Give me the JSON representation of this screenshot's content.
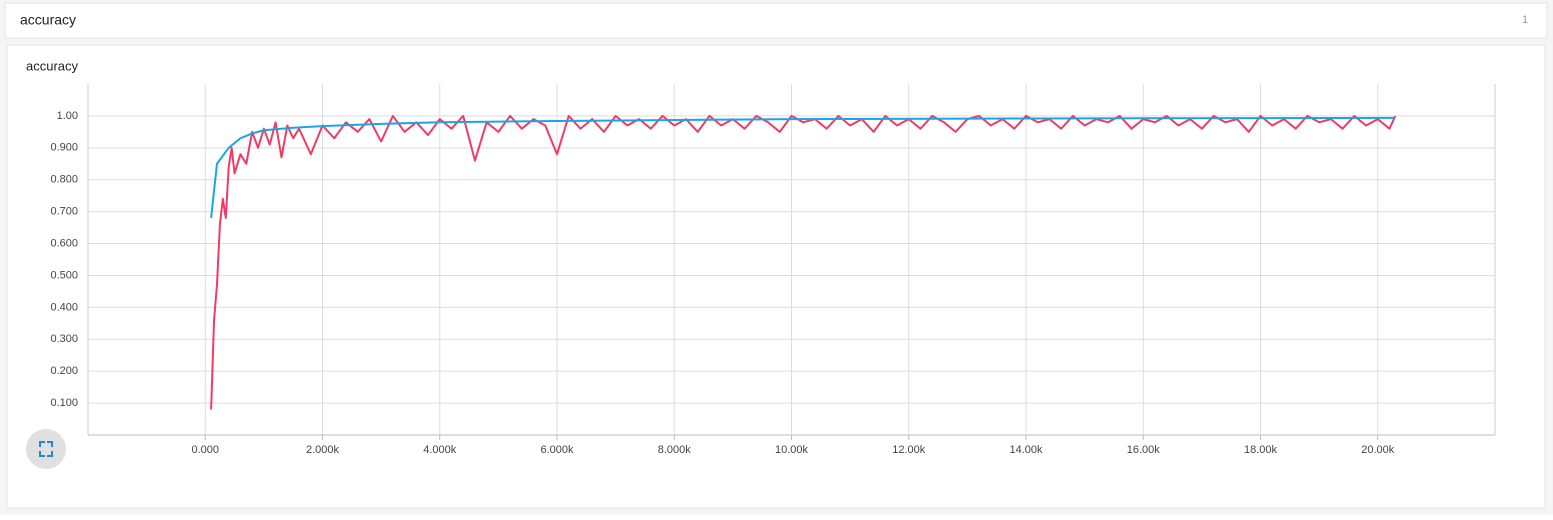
{
  "header": {
    "title": "accuracy",
    "count": "1"
  },
  "chart_data": {
    "type": "line",
    "title": "accuracy",
    "xlim": [
      -2000,
      22000
    ],
    "xticks": [
      {
        "value": 0,
        "label": "0.000"
      },
      {
        "value": 2000,
        "label": "2.000k"
      },
      {
        "value": 4000,
        "label": "4.000k"
      },
      {
        "value": 6000,
        "label": "6.000k"
      },
      {
        "value": 8000,
        "label": "8.000k"
      },
      {
        "value": 10000,
        "label": "10.00k"
      },
      {
        "value": 12000,
        "label": "12.00k"
      },
      {
        "value": 14000,
        "label": "14.00k"
      },
      {
        "value": 16000,
        "label": "16.00k"
      },
      {
        "value": 18000,
        "label": "18.00k"
      },
      {
        "value": 20000,
        "label": "20.00k"
      }
    ],
    "ylim": [
      0,
      1.1
    ],
    "yticks": [
      {
        "value": 0.1,
        "label": "0.100"
      },
      {
        "value": 0.2,
        "label": "0.200"
      },
      {
        "value": 0.3,
        "label": "0.300"
      },
      {
        "value": 0.4,
        "label": "0.400"
      },
      {
        "value": 0.5,
        "label": "0.500"
      },
      {
        "value": 0.6,
        "label": "0.600"
      },
      {
        "value": 0.7,
        "label": "0.700"
      },
      {
        "value": 0.8,
        "label": "0.800"
      },
      {
        "value": 0.9,
        "label": "0.900"
      },
      {
        "value": 1.0,
        "label": "1.00"
      }
    ],
    "grid": true,
    "series": [
      {
        "color": "#f03c63",
        "x": [
          100,
          150,
          200,
          250,
          300,
          350,
          400,
          450,
          500,
          600,
          700,
          800,
          900,
          1000,
          1100,
          1200,
          1300,
          1400,
          1500,
          1600,
          1800,
          2000,
          2200,
          2400,
          2600,
          2800,
          3000,
          3200,
          3400,
          3600,
          3800,
          4000,
          4200,
          4400,
          4600,
          4800,
          5000,
          5200,
          5400,
          5600,
          5800,
          6000,
          6200,
          6400,
          6600,
          6800,
          7000,
          7200,
          7400,
          7600,
          7800,
          8000,
          8200,
          8400,
          8600,
          8800,
          9000,
          9200,
          9400,
          9600,
          9800,
          10000,
          10200,
          10400,
          10600,
          10800,
          11000,
          11200,
          11400,
          11600,
          11800,
          12000,
          12200,
          12400,
          12600,
          12800,
          13000,
          13200,
          13400,
          13600,
          13800,
          14000,
          14200,
          14400,
          14600,
          14800,
          15000,
          15200,
          15400,
          15600,
          15800,
          16000,
          16200,
          16400,
          16600,
          16800,
          17000,
          17200,
          17400,
          17600,
          17800,
          18000,
          18200,
          18400,
          18600,
          18800,
          19000,
          19200,
          19400,
          19600,
          19800,
          20000,
          20200,
          20300
        ],
        "values": [
          0.08,
          0.36,
          0.47,
          0.66,
          0.74,
          0.68,
          0.84,
          0.9,
          0.82,
          0.88,
          0.85,
          0.95,
          0.9,
          0.96,
          0.91,
          0.98,
          0.87,
          0.97,
          0.93,
          0.96,
          0.88,
          0.97,
          0.93,
          0.98,
          0.95,
          0.99,
          0.92,
          1.0,
          0.95,
          0.98,
          0.94,
          0.99,
          0.96,
          1.0,
          0.86,
          0.98,
          0.95,
          1.0,
          0.96,
          0.99,
          0.97,
          0.88,
          1.0,
          0.96,
          0.99,
          0.95,
          1.0,
          0.97,
          0.99,
          0.96,
          1.0,
          0.97,
          0.99,
          0.95,
          1.0,
          0.97,
          0.99,
          0.96,
          1.0,
          0.98,
          0.95,
          1.0,
          0.98,
          0.99,
          0.96,
          1.0,
          0.97,
          0.99,
          0.95,
          1.0,
          0.97,
          0.99,
          0.96,
          1.0,
          0.98,
          0.95,
          0.99,
          1.0,
          0.97,
          0.99,
          0.96,
          1.0,
          0.98,
          0.99,
          0.96,
          1.0,
          0.97,
          0.99,
          0.98,
          1.0,
          0.96,
          0.99,
          0.98,
          1.0,
          0.97,
          0.99,
          0.96,
          1.0,
          0.98,
          0.99,
          0.95,
          1.0,
          0.97,
          0.99,
          0.96,
          1.0,
          0.98,
          0.99,
          0.96,
          1.0,
          0.97,
          0.99,
          0.96,
          1.0
        ]
      },
      {
        "color": "#1aa5e6",
        "x": [
          100,
          200,
          400,
          600,
          800,
          1000,
          1500,
          2000,
          3000,
          4000,
          6000,
          8000,
          10000,
          14000,
          18000,
          20300
        ],
        "values": [
          0.68,
          0.85,
          0.9,
          0.93,
          0.945,
          0.955,
          0.963,
          0.968,
          0.975,
          0.98,
          0.984,
          0.987,
          0.99,
          0.992,
          0.993,
          0.994
        ]
      }
    ]
  }
}
